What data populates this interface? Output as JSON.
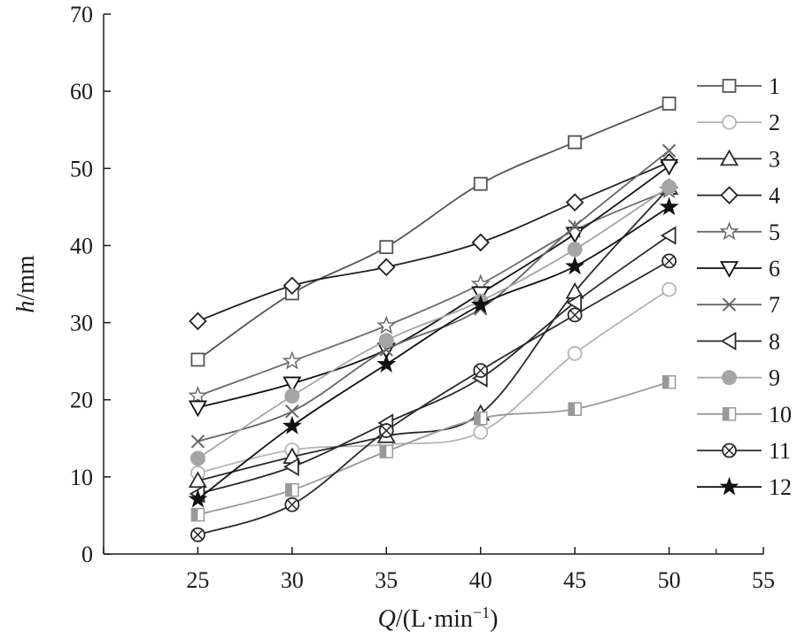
{
  "chart_data": {
    "type": "line",
    "title": "",
    "xlabel": {
      "italic": "Q",
      "rest": "/(L·min",
      "sup": "−1",
      "close": ")"
    },
    "ylabel": {
      "italic": "h",
      "rest": "/mm"
    },
    "xlim": [
      20,
      55
    ],
    "ylim": [
      0,
      70
    ],
    "xticks": [
      25,
      30,
      35,
      40,
      45,
      50,
      55
    ],
    "yticks": [
      0,
      10,
      20,
      30,
      40,
      50,
      60,
      70
    ],
    "x": [
      25,
      30,
      35,
      40,
      45,
      50
    ],
    "grid": false,
    "legend_position": "right",
    "series": [
      {
        "name": "1",
        "marker": "square",
        "color": "#555555",
        "values": [
          25.2,
          33.8,
          39.8,
          48.0,
          53.4,
          58.4
        ]
      },
      {
        "name": "2",
        "marker": "circle",
        "color": "#b5b5b5",
        "values": [
          10.5,
          13.5,
          14.2,
          15.8,
          26.0,
          34.3
        ]
      },
      {
        "name": "3",
        "marker": "triangle",
        "color": "#2a2a2a",
        "values": [
          9.5,
          12.6,
          15.3,
          18.2,
          34.0,
          47.5
        ]
      },
      {
        "name": "4",
        "marker": "diamond",
        "color": "#222222",
        "values": [
          30.2,
          34.8,
          37.2,
          40.4,
          45.6,
          50.8
        ]
      },
      {
        "name": "5",
        "marker": "star-open",
        "color": "#6b6b6b",
        "values": [
          20.5,
          25.0,
          29.6,
          35.0,
          42.0,
          47.2
        ]
      },
      {
        "name": "6",
        "marker": "tri-down",
        "color": "#111111",
        "values": [
          19.0,
          22.1,
          26.5,
          33.8,
          41.5,
          50.3
        ]
      },
      {
        "name": "7",
        "marker": "x",
        "color": "#666666",
        "values": [
          14.6,
          18.5,
          26.5,
          31.8,
          42.5,
          52.3
        ]
      },
      {
        "name": "8",
        "marker": "tri-left",
        "color": "#2a2a2a",
        "values": [
          7.8,
          11.3,
          17.0,
          22.8,
          32.6,
          41.3
        ]
      },
      {
        "name": "9",
        "marker": "circle-fill",
        "color": "#a5a5a5",
        "values": [
          12.4,
          20.5,
          27.7,
          32.8,
          39.5,
          47.6
        ]
      },
      {
        "name": "10",
        "marker": "square-half",
        "color": "#999999",
        "values": [
          5.1,
          8.3,
          13.3,
          17.6,
          18.8,
          22.3
        ]
      },
      {
        "name": "11",
        "marker": "circle-x",
        "color": "#2a2a2a",
        "values": [
          2.5,
          6.4,
          16.0,
          23.8,
          31.0,
          38.0
        ]
      },
      {
        "name": "12",
        "marker": "star",
        "color": "#111111",
        "values": [
          7.1,
          16.6,
          24.6,
          32.3,
          37.3,
          45.0
        ]
      }
    ]
  }
}
